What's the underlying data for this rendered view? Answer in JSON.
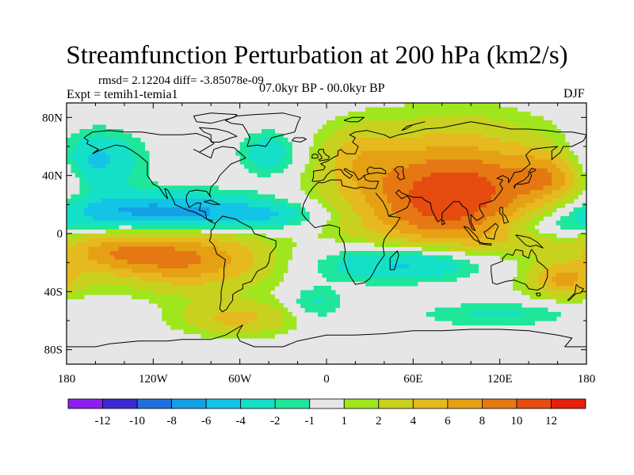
{
  "chart_data": {
    "type": "heatmap",
    "title": "Streamfunction Perturbation at 200 hPa (km2/s)",
    "stats_text": "rmsd= 2.12204  diff= -3.85078e-09",
    "experiment": "Expt = temih1-temia1",
    "period": "07.0kyr BP - 00.0kyr BP",
    "season": "DJF",
    "xlim": [
      -180,
      180
    ],
    "ylim": [
      -90,
      90
    ],
    "x_ticks": [
      {
        "value": -180,
        "label": "180"
      },
      {
        "value": -120,
        "label": "120W"
      },
      {
        "value": -60,
        "label": "60W"
      },
      {
        "value": 0,
        "label": "0"
      },
      {
        "value": 60,
        "label": "60E"
      },
      {
        "value": 120,
        "label": "120E"
      },
      {
        "value": 180,
        "label": "180"
      }
    ],
    "y_ticks": [
      {
        "value": 80,
        "label": "80N"
      },
      {
        "value": 40,
        "label": "40N"
      },
      {
        "value": 0,
        "label": "0"
      },
      {
        "value": -40,
        "label": "40S"
      },
      {
        "value": -80,
        "label": "80S"
      }
    ],
    "colorbar": {
      "colors": [
        "#8c1eee",
        "#3c28d2",
        "#1e6edc",
        "#14a0e6",
        "#14c4e6",
        "#14e0c8",
        "#1ee69b",
        "#e6e6e6",
        "#a0e61e",
        "#c8d21e",
        "#e6b91e",
        "#e6a014",
        "#e67814",
        "#e64b0f",
        "#e61e0a"
      ],
      "labels": [
        "-12",
        "-10",
        "-8",
        "-6",
        "-4",
        "-2",
        "-1",
        "1",
        "2",
        "4",
        "6",
        "8",
        "10",
        "12"
      ]
    },
    "anomalies": [
      {
        "lon": 88,
        "lat": 25,
        "rlon": 70,
        "rlat": 42,
        "amp": 12
      },
      {
        "lon": 22,
        "lat": 52,
        "rlon": 26,
        "rlat": 22,
        "amp": 3
      },
      {
        "lon": 155,
        "lat": 40,
        "rlon": 24,
        "rlat": 16,
        "amp": 4.5
      },
      {
        "lon": -95,
        "lat": -18,
        "rlon": 55,
        "rlat": 20,
        "amp": 8
      },
      {
        "lon": -148,
        "lat": -12,
        "rlon": 38,
        "rlat": 14,
        "amp": 5
      },
      {
        "lon": 165,
        "lat": -32,
        "rlon": 24,
        "rlat": 12,
        "amp": 6
      },
      {
        "lon": -62,
        "lat": -58,
        "rlon": 40,
        "rlat": 12,
        "amp": 4.5
      },
      {
        "lon": -120,
        "lat": 15,
        "rlon": 85,
        "rlat": 13,
        "amp": -7
      },
      {
        "lon": 62,
        "lat": -20,
        "rlon": 62,
        "rlat": 14,
        "amp": -7
      },
      {
        "lon": -160,
        "lat": 50,
        "rlon": 30,
        "rlat": 20,
        "amp": -5
      },
      {
        "lon": -40,
        "lat": 55,
        "rlon": 20,
        "rlat": 15,
        "amp": -3.5
      },
      {
        "lon": -8,
        "lat": -48,
        "rlon": 20,
        "rlat": 12,
        "amp": -2.5
      },
      {
        "lon": -45,
        "lat": 12,
        "rlon": 40,
        "rlat": 8,
        "amp": -2.5
      },
      {
        "lon": 115,
        "lat": -55,
        "rlon": 55,
        "rlat": 9,
        "amp": -2.5
      },
      {
        "lon": 150,
        "lat": 5,
        "rlon": 40,
        "rlat": 9,
        "amp": -3
      }
    ]
  }
}
